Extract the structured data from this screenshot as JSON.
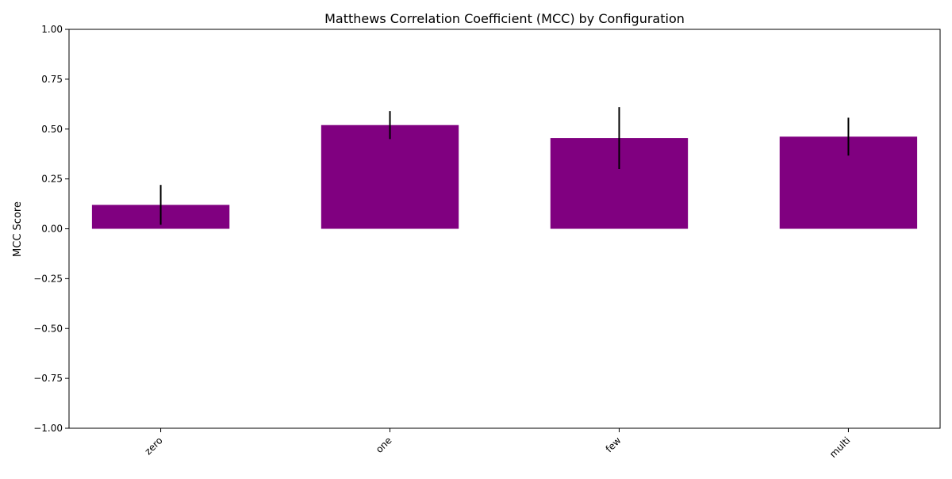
{
  "chart_data": {
    "type": "bar",
    "title": "Matthews Correlation Coefficient (MCC) by Configuration",
    "xlabel": "",
    "ylabel": "MCC Score",
    "categories": [
      "zero",
      "one",
      "few",
      "multi"
    ],
    "values": [
      0.12,
      0.52,
      0.455,
      0.462
    ],
    "error": [
      0.1,
      0.07,
      0.155,
      0.095
    ],
    "ylim": [
      -1.0,
      1.0
    ],
    "yticks": [
      -1.0,
      -0.75,
      -0.5,
      -0.25,
      0.0,
      0.25,
      0.5,
      0.75,
      1.0
    ],
    "ytick_labels": [
      "−1.00",
      "−0.75",
      "−0.50",
      "−0.25",
      "0.00",
      "0.25",
      "0.50",
      "0.75",
      "1.00"
    ],
    "bar_color": "#800080",
    "error_color": "#000000",
    "grid": false,
    "legend": false
  }
}
